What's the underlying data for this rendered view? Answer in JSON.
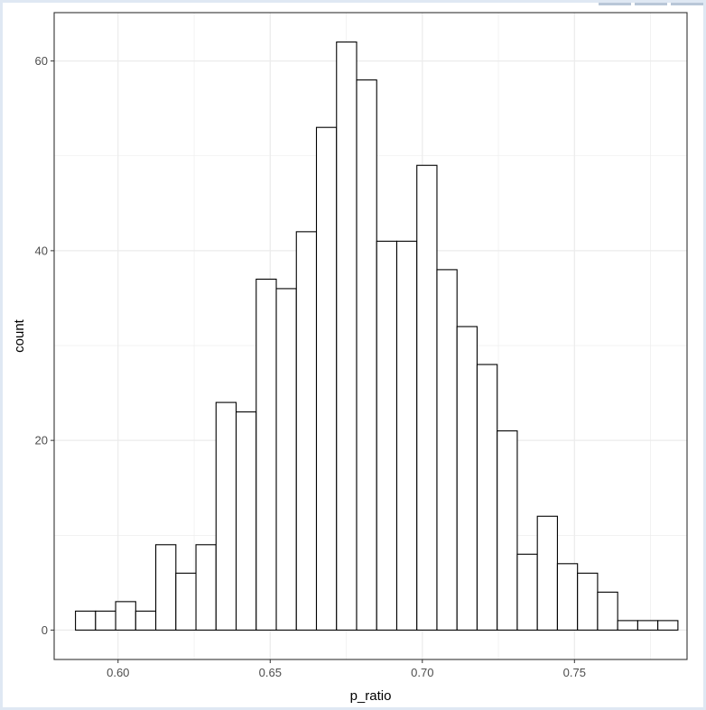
{
  "chart_data": {
    "type": "bar",
    "title": "",
    "xlabel": "p_ratio",
    "ylabel": "count",
    "xlim": [
      0.579,
      0.787
    ],
    "ylim": [
      -3.1,
      65.1
    ],
    "x_ticks": [
      0.6,
      0.65,
      0.7,
      0.75
    ],
    "x_tick_labels": [
      "0.60",
      "0.65",
      "0.70",
      "0.75"
    ],
    "y_ticks": [
      0,
      20,
      40,
      60
    ],
    "y_tick_labels": [
      "0",
      "20",
      "40",
      "60"
    ],
    "grid": true,
    "bin_start": 0.586,
    "bin_width": 0.0066,
    "values": [
      2,
      2,
      3,
      2,
      9,
      6,
      9,
      24,
      23,
      37,
      36,
      42,
      53,
      62,
      58,
      41,
      41,
      49,
      38,
      32,
      28,
      21,
      8,
      12,
      7,
      6,
      4,
      1,
      1,
      1
    ],
    "colors": {
      "bar_fill": "#ffffff",
      "bar_stroke": "#000000",
      "grid": "#ebebeb",
      "panel_border": "#333333"
    }
  }
}
